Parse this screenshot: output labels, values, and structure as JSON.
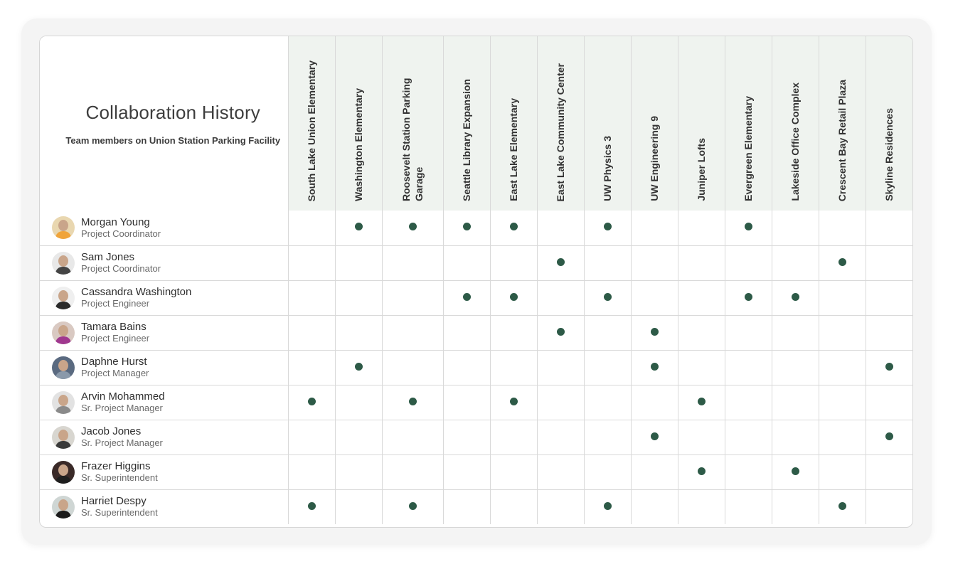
{
  "title": "Collaboration History",
  "subtitle": "Team members on Union Station Parking Facility",
  "colors": {
    "dot": "#2d5a47",
    "header_bg": "#eff3ef"
  },
  "projects": [
    "South Lake Union Elementary",
    "Washington Elementary",
    "Roosevelt Station Parking Garage",
    "Seattle Library Expansion",
    "East Lake Elementary",
    "East Lake Community Center",
    "UW Physics 3",
    "UW Engineering 9",
    "Juniper Lofts",
    "Evergreen Elementary",
    "Lakeside Office Complex",
    "Crescent Bay Retail Plaza",
    "Skyline Residences"
  ],
  "members": [
    {
      "name": "Morgan Young",
      "role": "Project Coordinator",
      "avatar": "avatar-icon",
      "avatar_bg": "#e9d7b0",
      "avatar_body": "#f0a43a",
      "projects": [
        false,
        true,
        true,
        true,
        true,
        false,
        true,
        false,
        false,
        true,
        false,
        false,
        false
      ]
    },
    {
      "name": "Sam Jones",
      "role": "Project Coordinator",
      "avatar": "avatar-icon",
      "avatar_bg": "#e8e8e8",
      "avatar_body": "#444444",
      "projects": [
        false,
        false,
        false,
        false,
        false,
        true,
        false,
        false,
        false,
        false,
        false,
        true,
        false
      ]
    },
    {
      "name": "Cassandra Washington",
      "role": "Project Engineer",
      "avatar": "avatar-icon",
      "avatar_bg": "#efefef",
      "avatar_body": "#2a2a2a",
      "projects": [
        false,
        false,
        false,
        true,
        true,
        false,
        true,
        false,
        false,
        true,
        true,
        false,
        false
      ]
    },
    {
      "name": "Tamara Bains",
      "role": "Project Engineer",
      "avatar": "avatar-icon",
      "avatar_bg": "#d9c9c2",
      "avatar_body": "#a0388f",
      "projects": [
        false,
        false,
        false,
        false,
        false,
        true,
        false,
        true,
        false,
        false,
        false,
        false,
        false
      ]
    },
    {
      "name": "Daphne Hurst",
      "role": "Project Manager",
      "avatar": "avatar-icon",
      "avatar_bg": "#5a6a80",
      "avatar_body": "#8a99aa",
      "projects": [
        false,
        true,
        false,
        false,
        false,
        false,
        false,
        true,
        false,
        false,
        false,
        false,
        true
      ]
    },
    {
      "name": "Arvin Mohammed",
      "role": "Sr. Project Manager",
      "avatar": "avatar-icon",
      "avatar_bg": "#e2e2e2",
      "avatar_body": "#8a8a8a",
      "projects": [
        true,
        false,
        true,
        false,
        true,
        false,
        false,
        false,
        true,
        false,
        false,
        false,
        false
      ]
    },
    {
      "name": "Jacob Jones",
      "role": "Sr. Project Manager",
      "avatar": "avatar-icon",
      "avatar_bg": "#d8d6d0",
      "avatar_body": "#3a3a3a",
      "projects": [
        false,
        false,
        false,
        false,
        false,
        false,
        false,
        true,
        false,
        false,
        false,
        false,
        true
      ]
    },
    {
      "name": "Frazer Higgins",
      "role": "Sr. Superintendent",
      "avatar": "avatar-icon",
      "avatar_bg": "#3a2a28",
      "avatar_body": "#1e1e1e",
      "projects": [
        false,
        false,
        false,
        false,
        false,
        false,
        false,
        false,
        true,
        false,
        true,
        false,
        false
      ]
    },
    {
      "name": "Harriet Despy",
      "role": "Sr. Superintendent",
      "avatar": "avatar-icon",
      "avatar_bg": "#cfd6d4",
      "avatar_body": "#1b1b1b",
      "projects": [
        true,
        false,
        true,
        false,
        false,
        false,
        true,
        false,
        false,
        false,
        false,
        true,
        false
      ]
    }
  ]
}
